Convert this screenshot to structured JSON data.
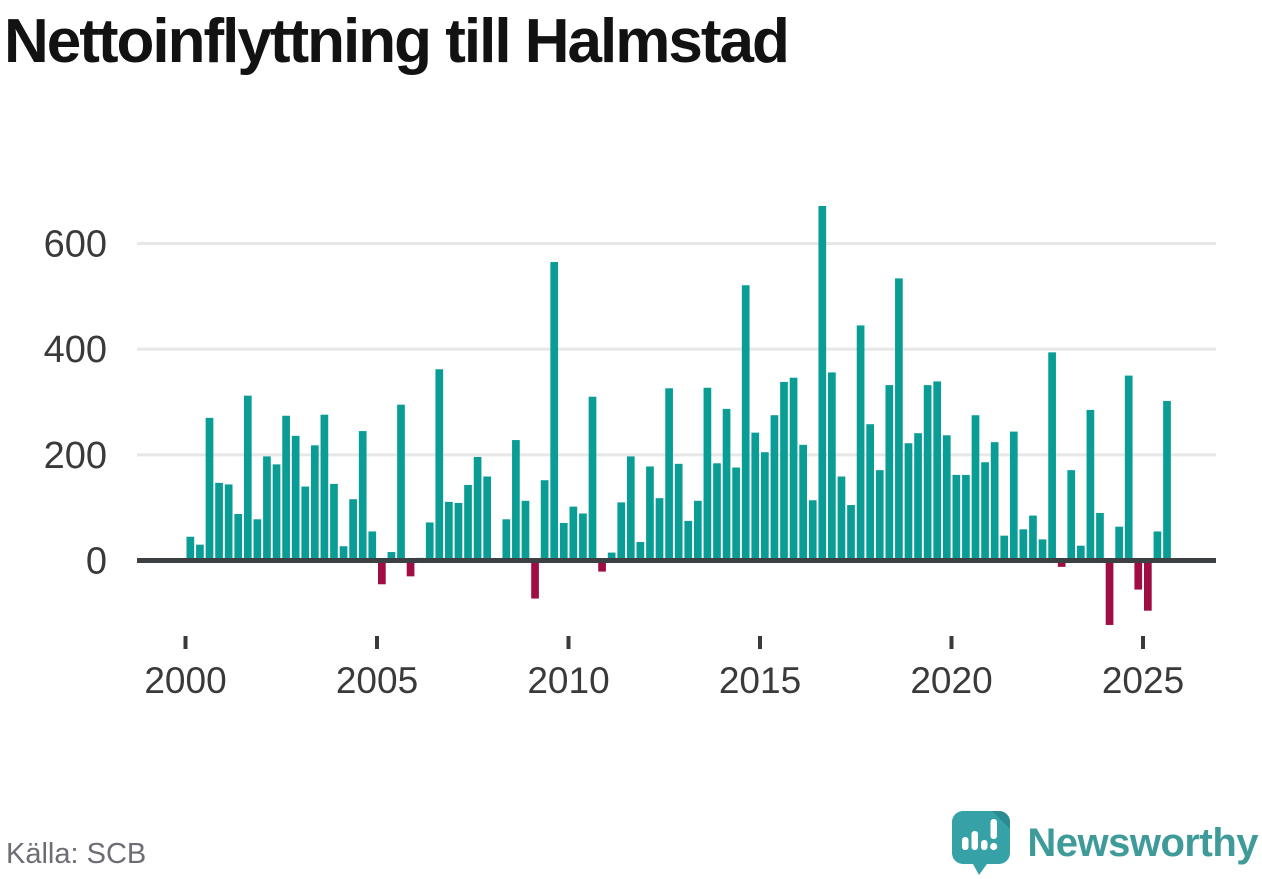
{
  "header": {
    "title": "Nettoinflyttning till Halmstad"
  },
  "footer": {
    "source": "Källa: SCB",
    "brand": "Newsworthy"
  },
  "colors": {
    "positive": "#0a9d96",
    "negative": "#a00d45",
    "grid": "#e7e7e7",
    "zero_line": "#3d4043",
    "axis_text": "#3a3a3a",
    "logo_bubble": "#36a1a6",
    "logo_fold": "#2a8b92",
    "brand_text": "#3f9b9a"
  },
  "chart_data": {
    "type": "bar",
    "title": "Nettoinflyttning till Halmstad",
    "period": "quarterly",
    "xlabel": "",
    "ylabel": "",
    "y_ticks": [
      0,
      200,
      400,
      600
    ],
    "ylim": [
      -150,
      700
    ],
    "grid": "horizontal",
    "legend": "none",
    "x_tick_labels": [
      "2000",
      "2005",
      "2010",
      "2015",
      "2020",
      "2025"
    ],
    "series": [
      {
        "name": "Nettoinflyttning",
        "by_year": [
          {
            "year": 2000,
            "q": [
              45,
              30,
              270,
              147
            ]
          },
          {
            "year": 2001,
            "q": [
              144,
              88,
              312,
              78
            ]
          },
          {
            "year": 2002,
            "q": [
              197,
              182,
              274,
              236
            ]
          },
          {
            "year": 2003,
            "q": [
              140,
              218,
              276,
              145
            ]
          },
          {
            "year": 2004,
            "q": [
              27,
              116,
              245,
              55
            ]
          },
          {
            "year": 2005,
            "q": [
              -45,
              16,
              295,
              -30
            ]
          },
          {
            "year": 2006,
            "q": [
              5,
              72,
              362,
              111
            ]
          },
          {
            "year": 2007,
            "q": [
              109,
              143,
              196,
              159
            ]
          },
          {
            "year": 2008,
            "q": [
              0,
              78,
              228,
              113
            ]
          },
          {
            "year": 2009,
            "q": [
              -72,
              152,
              565,
              71
            ]
          },
          {
            "year": 2010,
            "q": [
              102,
              89,
              310,
              -21
            ]
          },
          {
            "year": 2011,
            "q": [
              15,
              110,
              197,
              35
            ]
          },
          {
            "year": 2012,
            "q": [
              178,
              118,
              326,
              183
            ]
          },
          {
            "year": 2013,
            "q": [
              75,
              113,
              327,
              184
            ]
          },
          {
            "year": 2014,
            "q": [
              287,
              176,
              521,
              242
            ]
          },
          {
            "year": 2015,
            "q": [
              205,
              275,
              338,
              346
            ]
          },
          {
            "year": 2016,
            "q": [
              219,
              114,
              671,
              356
            ]
          },
          {
            "year": 2017,
            "q": [
              159,
              105,
              445,
              258
            ]
          },
          {
            "year": 2018,
            "q": [
              171,
              332,
              534,
              222
            ]
          },
          {
            "year": 2019,
            "q": [
              241,
              332,
              339,
              237
            ]
          },
          {
            "year": 2020,
            "q": [
              162,
              162,
              275,
              186
            ]
          },
          {
            "year": 2021,
            "q": [
              224,
              47,
              244,
              59
            ]
          },
          {
            "year": 2022,
            "q": [
              85,
              40,
              394,
              -12
            ]
          },
          {
            "year": 2023,
            "q": [
              171,
              28,
              285,
              90
            ]
          },
          {
            "year": 2024,
            "q": [
              -122,
              64,
              350,
              -55
            ]
          },
          {
            "year": 2025,
            "q": [
              -95,
              55,
              302
            ]
          }
        ]
      }
    ]
  }
}
